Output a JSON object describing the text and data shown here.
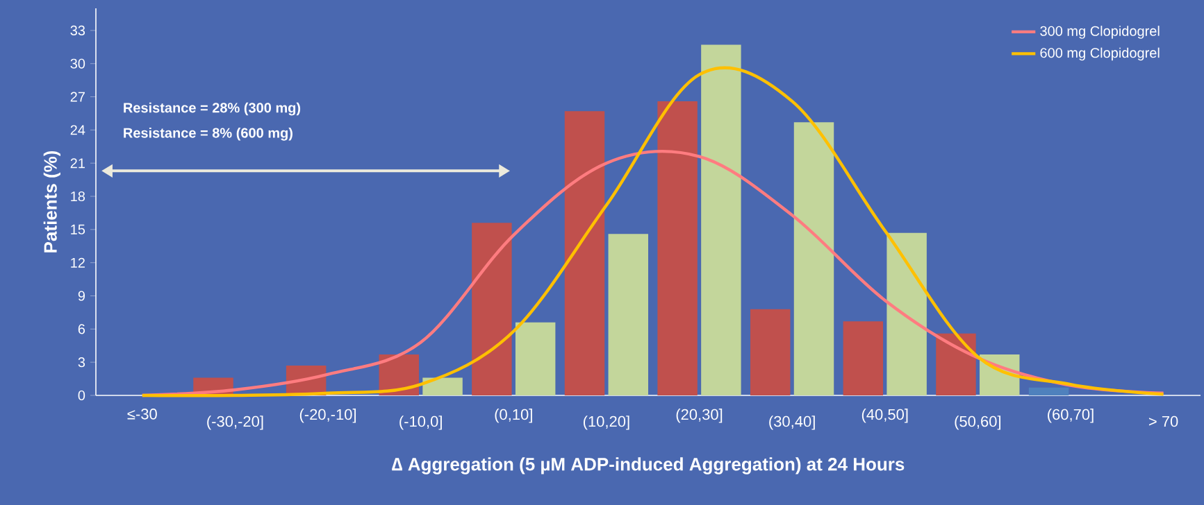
{
  "chart_data": {
    "type": "bar",
    "xlabel": "∆ Aggregation (5 µM ADP-induced Aggregation) at 24 Hours",
    "ylabel": "Patients (%)",
    "categories": [
      "≤-30",
      "(-30,-20]",
      "(-20,-10]",
      "(-10,0]",
      "(0,10]",
      "(10,20]",
      "(20,30]",
      "(30,40]",
      "(40,50]",
      "(50,60]",
      "(60,70]",
      "> 70"
    ],
    "series": [
      {
        "colors": [
          "#c0504d",
          "#c0504d",
          "#c0504d",
          "#c0504d",
          "#c0504d",
          "#c0504d",
          "#c0504d",
          "#c0504d",
          "#c0504d",
          "#c0504d",
          "#4f81bd",
          "#c0504d"
        ],
        "values": [
          null,
          1.6,
          2.7,
          3.7,
          15.6,
          25.7,
          26.6,
          7.8,
          6.7,
          5.6,
          0.7,
          null
        ]
      },
      {
        "color": "#c3d69b",
        "values": [
          null,
          null,
          null,
          1.6,
          6.6,
          14.6,
          31.7,
          24.7,
          14.7,
          3.7,
          null,
          null
        ]
      },
      {
        "type": "line",
        "name": "300 mg Clopidogrel",
        "color": "#ff7c80",
        "values": [
          0,
          0.5,
          1.9,
          4.8,
          14.5,
          21,
          21.6,
          16.3,
          8.6,
          3.4,
          0.9,
          0.2
        ]
      },
      {
        "type": "line",
        "name": "600 mg Clopidogrel",
        "color": "#ffc000",
        "values": [
          0,
          0,
          0.2,
          1.0,
          5.8,
          17.2,
          29,
          26.6,
          14.9,
          3.5,
          1.0,
          0.1
        ]
      }
    ],
    "ylim": [
      0,
      35
    ],
    "yticks": [
      0,
      3,
      6,
      9,
      12,
      15,
      18,
      21,
      24,
      27,
      30,
      33
    ],
    "grid": false,
    "legend": "top right",
    "marker": "none",
    "line_style": "solid",
    "annotations": [
      "Resistance = 28% (300 mg)",
      "Resistance = 8%   (600 mg)"
    ]
  }
}
